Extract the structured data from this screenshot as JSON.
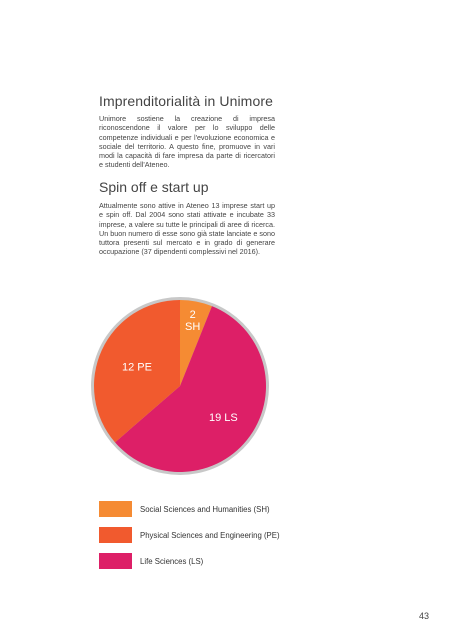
{
  "heading_1": "Imprenditorialità in Unimore",
  "paragraph_1": "Unimore sostiene la creazione di impresa riconoscendone il valore per lo sviluppo delle competenze individuali e per l'evoluzione economica e sociale del territorio. A questo fine, promuove in vari modi la capacità di fare impresa da parte di ricercatori e studenti dell'Ateneo.",
  "heading_2": "Spin off e start up",
  "paragraph_2": "Attualmente sono attive in Ateneo 13 imprese start up e spin off. Dal 2004 sono stati attivate e incubate 33 imprese, a valere su tutte le principali di aree di ricerca. Un buon numero di esse sono già state lanciate e sono tuttora presenti sul mercato e in grado di generare occupazione (37 dipendenti complessivi nel 2016).",
  "chart_data": {
    "type": "pie",
    "slices": [
      {
        "value": 2,
        "label_value": "2",
        "label_code": "SH",
        "color": "#F58B33"
      },
      {
        "value": 19,
        "label_value": "19",
        "label_code": "LS",
        "color": "#DD1F67"
      },
      {
        "value": 12,
        "label_value": "12",
        "label_code": "PE",
        "color": "#F15A2E"
      }
    ],
    "legend": [
      {
        "label": "Social Sciences and Humanities (SH)",
        "color": "#F58B33"
      },
      {
        "label": "Physical Sciences and Engineering (PE)",
        "color": "#F15A2E"
      },
      {
        "label": "Life Sciences (LS)",
        "color": "#DD1F67"
      }
    ],
    "rim_color": "#C8C8C8"
  },
  "page_number": "43"
}
